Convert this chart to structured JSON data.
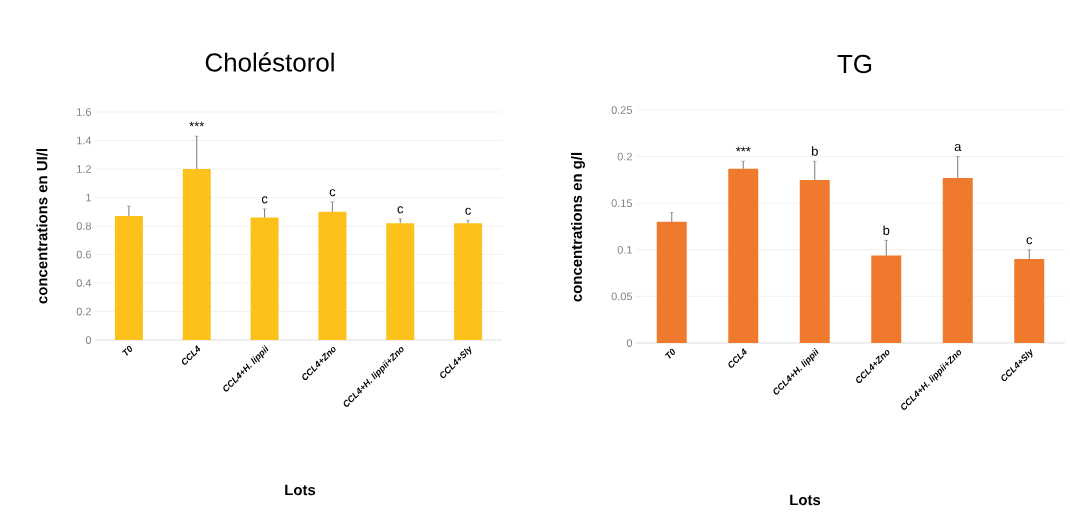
{
  "chart_data": [
    {
      "type": "bar",
      "title": "Choléstorol",
      "xlabel": "Lots",
      "ylabel": "concentrations en UI/l",
      "categories": [
        "T0",
        "CCL4",
        "CCL4+H. lippii",
        "CCL4+Zno",
        "CCL4+H. lippii+Zno",
        "CCL4+Sly"
      ],
      "values": [
        0.87,
        1.2,
        0.86,
        0.9,
        0.82,
        0.82
      ],
      "errors": [
        0.07,
        0.23,
        0.06,
        0.07,
        0.03,
        0.02
      ],
      "color": "#fcc21b",
      "ylim": [
        0,
        1.6
      ],
      "yticks": [
        0,
        0.2,
        0.4,
        0.6,
        0.8,
        1,
        1.2,
        1.4,
        1.6
      ],
      "grid": "y",
      "annotations": [
        {
          "text": "***",
          "x": "CCL4",
          "y": 1.43
        },
        {
          "text": "c",
          "x": "CCL4+H. lippii",
          "y": 0.92
        },
        {
          "text": "c",
          "x": "CCL4+Zno",
          "y": 0.97
        },
        {
          "text": "c",
          "x": "CCL4+H. lippii+Zno",
          "y": 0.85
        },
        {
          "text": "c",
          "x": "CCL4+Sly",
          "y": 0.84
        }
      ]
    },
    {
      "type": "bar",
      "title": "TG",
      "xlabel": "Lots",
      "ylabel": "concentrations en g/l",
      "categories": [
        "T0",
        "CCL4",
        "CCL4+H. lippii",
        "CCL4+Zno",
        "CCL4+H. lippii+Zno",
        "CCL4+Sly"
      ],
      "values": [
        0.13,
        0.187,
        0.175,
        0.094,
        0.177,
        0.09
      ],
      "errors": [
        0.01,
        0.008,
        0.02,
        0.016,
        0.023,
        0.01
      ],
      "color": "#ef7a2e",
      "ylim": [
        0,
        0.25
      ],
      "yticks": [
        0,
        0.05,
        0.1,
        0.15,
        0.2,
        0.25
      ],
      "grid": "y",
      "annotations": [
        {
          "text": "***",
          "x": "CCL4",
          "y": 0.195
        },
        {
          "text": "b",
          "x": "CCL4+H. lippii",
          "y": 0.195
        },
        {
          "text": "b",
          "x": "CCL4+Zno",
          "y": 0.11
        },
        {
          "text": "a",
          "x": "CCL4+H. lippii+Zno",
          "y": 0.2
        },
        {
          "text": "c",
          "x": "CCL4+Sly",
          "y": 0.1
        }
      ]
    }
  ]
}
